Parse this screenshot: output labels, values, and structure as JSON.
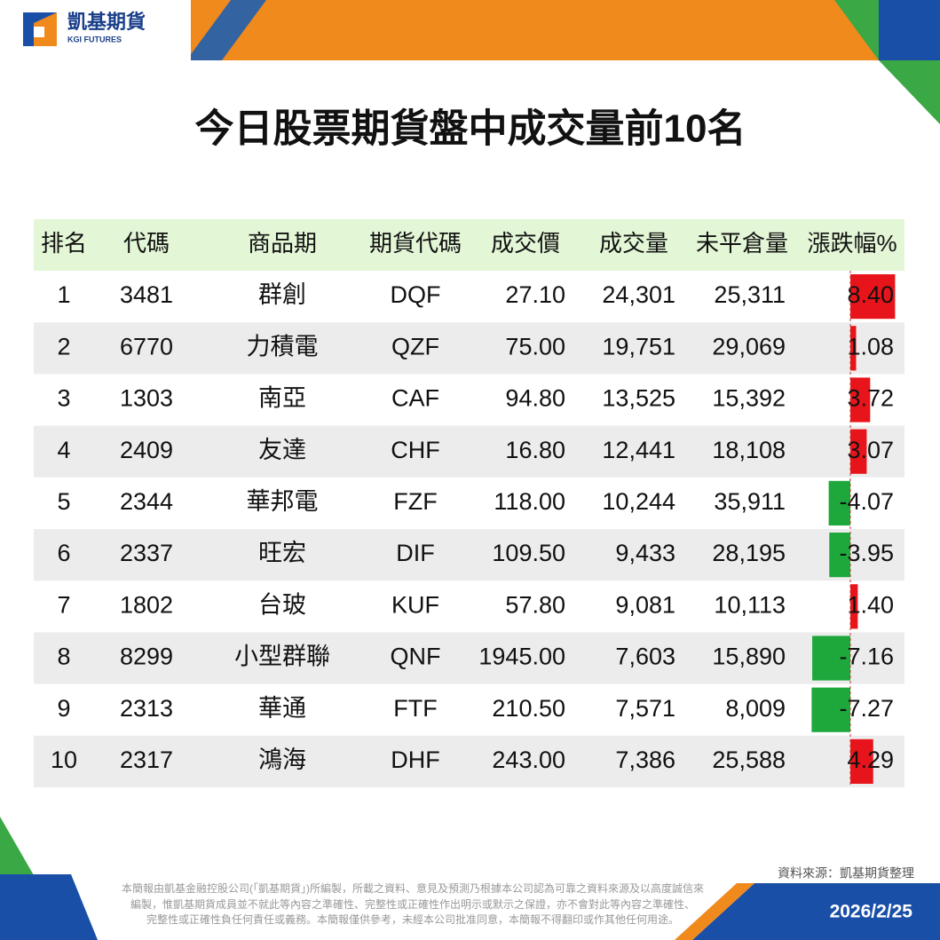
{
  "header": {
    "brand": "凱基期貨",
    "brand_en": "KGI FUTURES"
  },
  "title": "今日股票期貨盤中成交量前10名",
  "table": {
    "columns": [
      "排名",
      "代碼",
      "商品期",
      "期貨代碼",
      "成交價",
      "成交量",
      "未平倉量",
      "漲跌幅%"
    ],
    "rows": [
      [
        "1",
        "3481",
        "群創",
        "DQF",
        "27.10",
        "24,301",
        "25,311",
        {
          "value": 8.4,
          "label": "8.40"
        }
      ],
      [
        "2",
        "6770",
        "力積電",
        "QZF",
        "75.00",
        "19,751",
        "29,069",
        {
          "value": 1.08,
          "label": "1.08"
        }
      ],
      [
        "3",
        "1303",
        "南亞",
        "CAF",
        "94.80",
        "13,525",
        "15,392",
        {
          "value": 3.72,
          "label": "3.72"
        }
      ],
      [
        "4",
        "2409",
        "友達",
        "CHF",
        "16.80",
        "12,441",
        "18,108",
        {
          "value": 3.07,
          "label": "3.07"
        }
      ],
      [
        "5",
        "2344",
        "華邦電",
        "FZF",
        "118.00",
        "10,244",
        "35,911",
        {
          "value": -4.07,
          "label": "-4.07"
        }
      ],
      [
        "6",
        "2337",
        "旺宏",
        "DIF",
        "109.50",
        "9,433",
        "28,195",
        {
          "value": -3.95,
          "label": "-3.95"
        }
      ],
      [
        "7",
        "1802",
        "台玻",
        "KUF",
        "57.80",
        "9,081",
        "10,113",
        {
          "value": 1.4,
          "label": "1.40"
        }
      ],
      [
        "8",
        "8299",
        "小型群聯",
        "QNF",
        "1945.00",
        "7,603",
        "15,890",
        {
          "value": -7.16,
          "label": "-7.16"
        }
      ],
      [
        "9",
        "2313",
        "華通",
        "FTF",
        "210.50",
        "7,571",
        "8,009",
        {
          "value": -7.27,
          "label": "-7.27"
        }
      ],
      [
        "10",
        "2317",
        "鴻海",
        "DHF",
        "243.00",
        "7,386",
        "25,588",
        {
          "value": 4.29,
          "label": "4.29"
        }
      ]
    ]
  },
  "footer": {
    "source": "資料來源：凱基期貨整理",
    "disclaimer": [
      "本簡報由凱基金融控股公司(「凱基期貨」)所編製，所載之資料、意見及預測乃根據本公司認為可靠之資料來源及以高度誠信來",
      "編製，惟凱基期貨成員並不就此等內容之準確性、完整性或正確性作出明示或默示之保證，亦不會對此等內容之準確性、",
      "完整性或正確性負任何責任或義務。本簡報僅供參考，未經本公司批准同意，本簡報不得翻印或作其他任何用途。"
    ],
    "date": "2026/2/25"
  }
}
